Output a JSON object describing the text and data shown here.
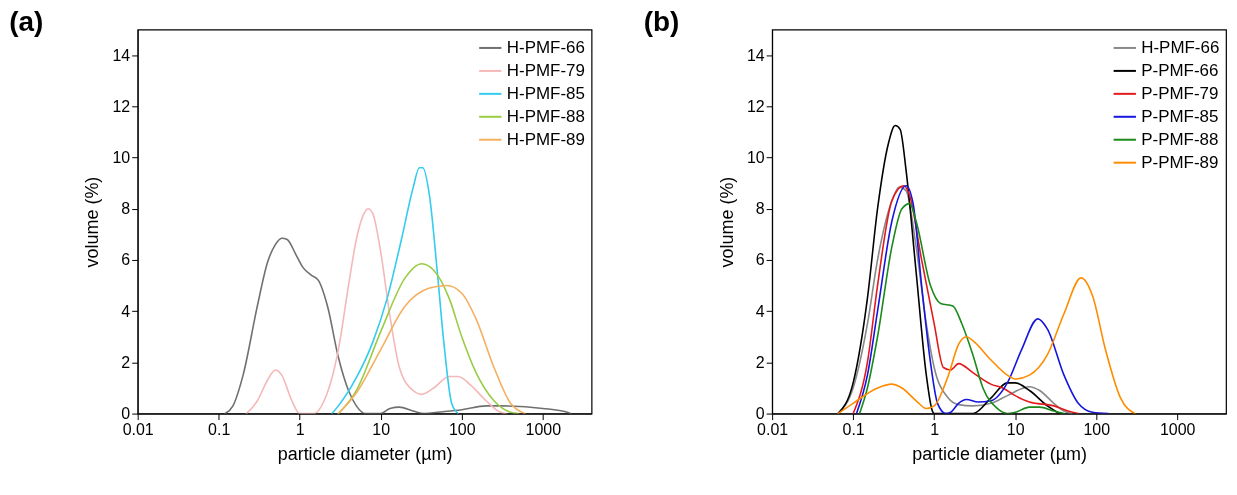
{
  "chart_data": [
    {
      "type": "line",
      "title": "(a)",
      "xlabel": "particle diameter (µm)",
      "ylabel": "volume (%)",
      "log": "x",
      "xlim": [
        0.01,
        4000
      ],
      "xticks": [
        0.01,
        0.1,
        1,
        10,
        100,
        1000
      ],
      "ylim": [
        0,
        15
      ],
      "yticks": [
        0,
        2,
        4,
        6,
        8,
        10,
        12,
        14
      ],
      "grid": false,
      "legend": "top right",
      "line_style": "solid",
      "marker": "none",
      "series": [
        {
          "name": "H-PMF-66",
          "color": "#707070",
          "x": [
            0.12,
            0.15,
            0.2,
            0.3,
            0.4,
            0.5,
            0.6,
            0.7,
            0.9,
            1.1,
            1.4,
            1.7,
            2.2,
            3,
            4,
            5,
            6.5,
            10,
            13,
            17,
            25,
            35,
            50,
            100,
            200,
            300,
            1000,
            2000,
            2200
          ],
          "values": [
            0,
            0.3,
            1.5,
            4.2,
            5.9,
            6.6,
            6.85,
            6.8,
            6.2,
            5.7,
            5.4,
            5.2,
            4.2,
            2.2,
            0.9,
            0.3,
            0,
            0,
            0.2,
            0.25,
            0.1,
            0,
            0.05,
            0.15,
            0.3,
            0.3,
            0.2,
            0.05,
            0
          ]
        },
        {
          "name": "H-PMF-79",
          "color": "#f4b8b8",
          "x": [
            0.22,
            0.3,
            0.4,
            0.5,
            0.6,
            0.8,
            1,
            1.5,
            2,
            3,
            4,
            5,
            6,
            7,
            8,
            10,
            13,
            17,
            25,
            32,
            45,
            70,
            90,
            130,
            200,
            300,
            350
          ],
          "values": [
            0,
            0.5,
            1.3,
            1.7,
            1.5,
            0.5,
            0,
            0,
            0.5,
            2.5,
            5,
            6.8,
            7.7,
            8,
            7.8,
            6.3,
            3.8,
            1.8,
            0.9,
            0.75,
            1.0,
            1.45,
            1.45,
            1.1,
            0.5,
            0.05,
            0
          ]
        },
        {
          "name": "H-PMF-85",
          "color": "#33ccee",
          "x": [
            2.5,
            3,
            5,
            8,
            12,
            18,
            25,
            30,
            33,
            40,
            50,
            60,
            75,
            90
          ],
          "values": [
            0,
            0.3,
            1.4,
            2.8,
            4.5,
            6.8,
            8.8,
            9.6,
            9.6,
            8.5,
            5.5,
            2.8,
            0.4,
            0
          ]
        },
        {
          "name": "H-PMF-88",
          "color": "#99cc44",
          "x": [
            3,
            5,
            10,
            20,
            32,
            45,
            70,
            100,
            150,
            250,
            400,
            500
          ],
          "values": [
            0,
            0.9,
            3.2,
            5.3,
            5.85,
            5.6,
            4.5,
            3.0,
            1.6,
            0.5,
            0.05,
            0
          ]
        },
        {
          "name": "H-PMF-89",
          "color": "#f4b060",
          "x": [
            3,
            5,
            10,
            20,
            40,
            65,
            100,
            150,
            250,
            400,
            600
          ],
          "values": [
            0,
            0.8,
            2.5,
            4.2,
            4.9,
            5.0,
            4.7,
            3.7,
            1.8,
            0.4,
            0
          ]
        }
      ]
    },
    {
      "type": "line",
      "title": "(b)",
      "xlabel": "particle diameter (µm)",
      "ylabel": "volume (%)",
      "log": "x",
      "xlim": [
        0.01,
        4000
      ],
      "xticks": [
        0.01,
        0.1,
        1,
        10,
        100,
        1000
      ],
      "ylim": [
        0,
        15
      ],
      "yticks": [
        0,
        2,
        4,
        6,
        8,
        10,
        12,
        14
      ],
      "grid": false,
      "legend": "top right",
      "line_style": "solid",
      "marker": "none",
      "series": [
        {
          "name": "H-PMF-66",
          "color": "#888888",
          "x": [
            0.065,
            0.1,
            0.15,
            0.2,
            0.3,
            0.37,
            0.45,
            0.6,
            0.8,
            1,
            1.5,
            2,
            3,
            5,
            8,
            15,
            20,
            30,
            40,
            50
          ],
          "values": [
            0,
            1,
            3.5,
            6,
            8.3,
            8.85,
            8.7,
            6.5,
            3.5,
            1.8,
            0.6,
            0.35,
            0.3,
            0.4,
            0.7,
            1.05,
            0.9,
            0.4,
            0.1,
            0
          ]
        },
        {
          "name": "P-PMF-66",
          "color": "#000000",
          "x": [
            0.065,
            0.1,
            0.15,
            0.2,
            0.27,
            0.33,
            0.38,
            0.45,
            0.6,
            0.8,
            0.95,
            1,
            3,
            5,
            8,
            10,
            15,
            25,
            35
          ],
          "values": [
            0,
            1.2,
            4.5,
            8,
            10.5,
            11.25,
            11.1,
            9.5,
            5.5,
            1.5,
            0.1,
            0,
            0,
            0.6,
            1.2,
            1.2,
            0.9,
            0.3,
            0
          ]
        },
        {
          "name": "P-PMF-79",
          "color": "#e31a1c",
          "x": [
            0.1,
            0.15,
            0.2,
            0.3,
            0.42,
            0.5,
            0.7,
            1,
            1.3,
            1.6,
            2,
            3,
            5,
            7,
            10,
            15,
            30,
            45,
            60
          ],
          "values": [
            0,
            2,
            5,
            8.3,
            8.9,
            8.5,
            6,
            3.5,
            1.8,
            1.7,
            1.95,
            1.6,
            1.15,
            1.0,
            0.7,
            0.45,
            0.3,
            0.1,
            0
          ]
        },
        {
          "name": "P-PMF-85",
          "color": "#1515e0",
          "x": [
            0.11,
            0.15,
            0.2,
            0.3,
            0.45,
            0.55,
            0.7,
            0.9,
            1.1,
            1.4,
            1.6,
            2,
            2.5,
            3.5,
            5,
            8,
            12,
            19,
            25,
            40,
            60,
            90,
            140
          ],
          "values": [
            0,
            1.5,
            4,
            7.5,
            8.9,
            8.2,
            5,
            2,
            0.4,
            0,
            0.05,
            0.4,
            0.55,
            0.45,
            0.5,
            1.2,
            2.5,
            3.7,
            3.3,
            1.5,
            0.4,
            0.05,
            0
          ]
        },
        {
          "name": "P-PMF-88",
          "color": "#1a8a1a",
          "x": [
            0.12,
            0.15,
            0.2,
            0.3,
            0.4,
            0.5,
            0.6,
            0.9,
            1.2,
            1.7,
            2.2,
            3,
            4,
            6,
            8,
            10,
            15,
            20,
            30,
            40
          ],
          "values": [
            0,
            1,
            3,
            6.5,
            8,
            8.2,
            7.5,
            5,
            4.3,
            4.2,
            3.5,
            2.3,
            1.0,
            0.2,
            0,
            0.05,
            0.25,
            0.25,
            0.1,
            0
          ]
        },
        {
          "name": "P-PMF-89",
          "color": "#ff8c00",
          "x": [
            0.065,
            0.1,
            0.2,
            0.3,
            0.4,
            0.6,
            0.8,
            1,
            1.5,
            2,
            2.5,
            3,
            5,
            8,
            10,
            15,
            25,
            40,
            65,
            90,
            130,
            200,
            300
          ],
          "values": [
            0,
            0.4,
            1.0,
            1.15,
            1.0,
            0.5,
            0.2,
            0.3,
            1.5,
            2.7,
            3.0,
            2.85,
            2.1,
            1.5,
            1.35,
            1.5,
            2.3,
            3.9,
            5.3,
            4.6,
            2.5,
            0.6,
            0
          ]
        }
      ]
    }
  ]
}
